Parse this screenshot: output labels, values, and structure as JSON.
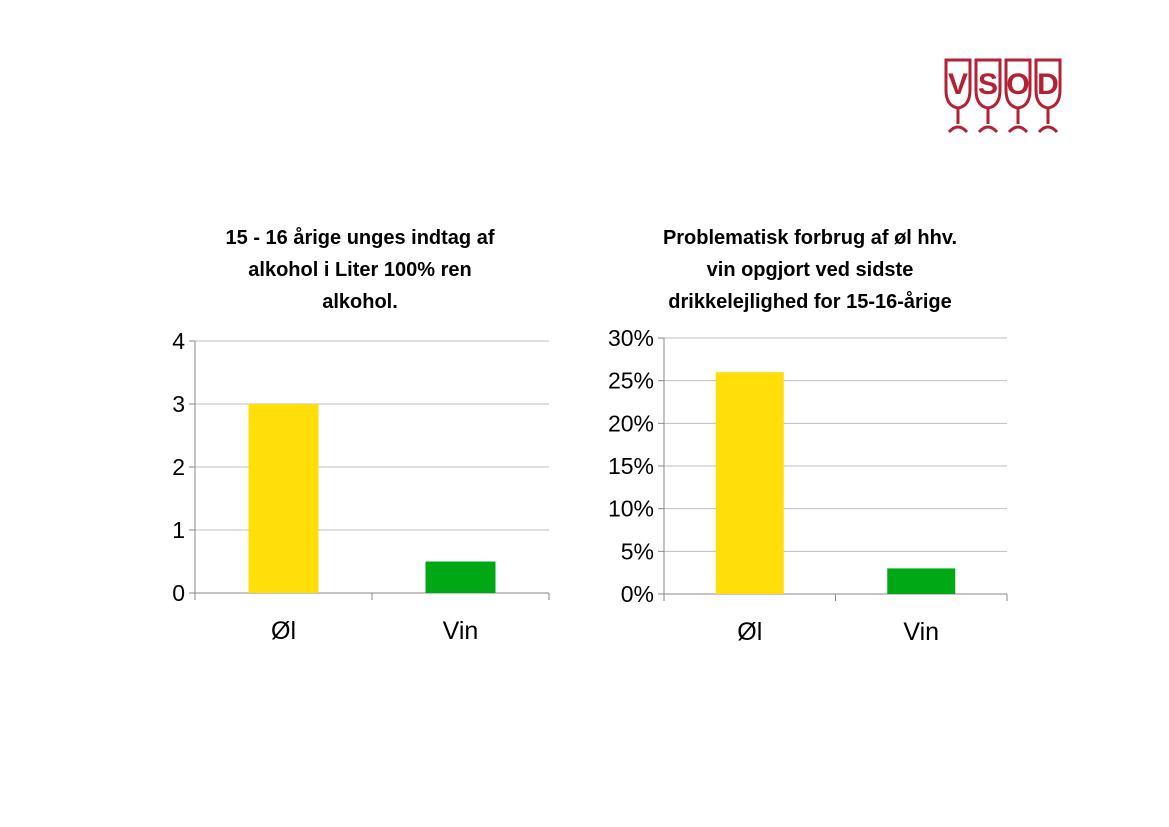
{
  "logo": {
    "letters": [
      "V",
      "S",
      "O",
      "D"
    ],
    "color": "#b22234"
  },
  "chart_data": [
    {
      "type": "bar",
      "title": "15 - 16 årige unges indtag af alkohol i Liter 100% ren alkohol.",
      "title_lines": [
        "15 - 16 årige unges indtag af",
        "alkohol i Liter 100% ren",
        "alkohol."
      ],
      "categories": [
        "Øl",
        "Vin"
      ],
      "values": [
        3.0,
        0.5
      ],
      "colors": [
        "#ffde0a",
        "#00a815"
      ],
      "ylim": [
        0,
        4
      ],
      "yticks": [
        0,
        1,
        2,
        3,
        4
      ],
      "ytick_labels": [
        "0",
        "1",
        "2",
        "3",
        "4"
      ],
      "grid": true,
      "xlabel": "",
      "ylabel": ""
    },
    {
      "type": "bar",
      "title": "Problematisk forbrug af øl hhv. vin opgjort ved sidste drikkelejlighed for 15-16-årige",
      "title_lines": [
        "Problematisk forbrug af øl hhv.",
        "vin opgjort ved sidste",
        "drikkelejlighed for 15-16-årige"
      ],
      "categories": [
        "Øl",
        "Vin"
      ],
      "values": [
        26,
        3
      ],
      "colors": [
        "#ffde0a",
        "#00a815"
      ],
      "ylim": [
        0,
        30
      ],
      "yticks": [
        0,
        5,
        10,
        15,
        20,
        25,
        30
      ],
      "ytick_labels": [
        "0%",
        "5%",
        "10%",
        "15%",
        "20%",
        "25%",
        "30%"
      ],
      "grid": true,
      "xlabel": "",
      "ylabel": ""
    }
  ]
}
